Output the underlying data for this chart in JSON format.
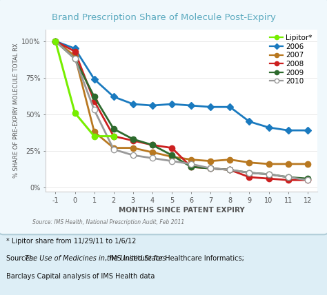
{
  "title": "Brand Prescription Share of Molecule Post-Expiry",
  "xlabel": "MONTHS SINCE PATENT EXPIRY",
  "ylabel": "% SHARE OF PRE-EXPIRY MOLECULE TOTAL RX",
  "source_inner": "Source: IMS Health, National Prescription Audit, Feb 2011",
  "footnote1": "* Lipitor share from 11/29/11 to 1/6/12",
  "footnote2_prefix": "Sources: ",
  "footnote2_italic": "The Use of Medicines in the United States",
  "footnote2_suffix": ", IMS Institute for Healthcare Informatics;",
  "footnote3": "Barclays Capital analysis of IMS Health data",
  "bg_color": "#ddeef6",
  "plot_bg_color": "#ffffff",
  "card_edge_color": "#b0cdd8",
  "title_color": "#5baabf",
  "series": {
    "Lipitor*": {
      "x": [
        -1,
        0,
        1,
        2
      ],
      "y": [
        100,
        51,
        35,
        35
      ],
      "color": "#77ee00",
      "marker": "o",
      "linewidth": 2.2,
      "markersize": 6,
      "zorder": 10,
      "markerfacecolor": "#77ee00"
    },
    "2006": {
      "x": [
        -1,
        0,
        1,
        2,
        3,
        4,
        5,
        6,
        7,
        8,
        9,
        10,
        11,
        12
      ],
      "y": [
        100,
        95,
        74,
        62,
        57,
        56,
        57,
        56,
        55,
        55,
        45,
        41,
        39,
        39
      ],
      "color": "#1a7abf",
      "marker": "D",
      "linewidth": 2.0,
      "markersize": 5,
      "zorder": 5,
      "markerfacecolor": "#1a7abf"
    },
    "2007": {
      "x": [
        -1,
        0,
        1,
        2,
        3,
        4,
        5,
        6,
        7,
        8,
        9,
        10,
        11,
        12
      ],
      "y": [
        100,
        90,
        38,
        27,
        27,
        24,
        21,
        19,
        18,
        19,
        17,
        16,
        16,
        16
      ],
      "color": "#b87820",
      "marker": "o",
      "linewidth": 2.0,
      "markersize": 6,
      "zorder": 5,
      "markerfacecolor": "#b87820"
    },
    "2008": {
      "x": [
        -1,
        0,
        1,
        2,
        3,
        4,
        5,
        6,
        7,
        8,
        9,
        10,
        11,
        12
      ],
      "y": [
        100,
        93,
        59,
        35,
        32,
        29,
        27,
        14,
        13,
        12,
        7,
        6,
        5,
        5
      ],
      "color": "#cc2020",
      "marker": "o",
      "linewidth": 2.0,
      "markersize": 6,
      "zorder": 5,
      "markerfacecolor": "#cc2020"
    },
    "2009": {
      "x": [
        -1,
        0,
        1,
        2,
        3,
        4,
        5,
        6,
        7,
        8,
        9,
        10,
        11,
        12
      ],
      "y": [
        100,
        88,
        62,
        40,
        33,
        29,
        22,
        14,
        13,
        12,
        10,
        9,
        7,
        6
      ],
      "color": "#2d6a2d",
      "marker": "o",
      "linewidth": 2.0,
      "markersize": 6,
      "zorder": 5,
      "markerfacecolor": "#2d6a2d"
    },
    "2010": {
      "x": [
        -1,
        0,
        1,
        2,
        3,
        4,
        5,
        6,
        7,
        8,
        9,
        10,
        11,
        12
      ],
      "y": [
        100,
        88,
        53,
        26,
        22,
        20,
        18,
        16,
        13,
        12,
        10,
        9,
        7,
        5
      ],
      "color": "#999999",
      "marker": "o",
      "linewidth": 2.0,
      "markersize": 6,
      "zorder": 5,
      "markerfacecolor": "#ffffff"
    }
  },
  "yticks": [
    0,
    25,
    50,
    75,
    100
  ],
  "ytick_labels": [
    "0%",
    "25%",
    "50%",
    "75%",
    "100%"
  ],
  "xticks": [
    -1,
    0,
    1,
    2,
    3,
    4,
    5,
    6,
    7,
    8,
    9,
    10,
    11,
    12
  ],
  "xlim": [
    -1.5,
    12.5
  ],
  "ylim": [
    -3,
    108
  ]
}
